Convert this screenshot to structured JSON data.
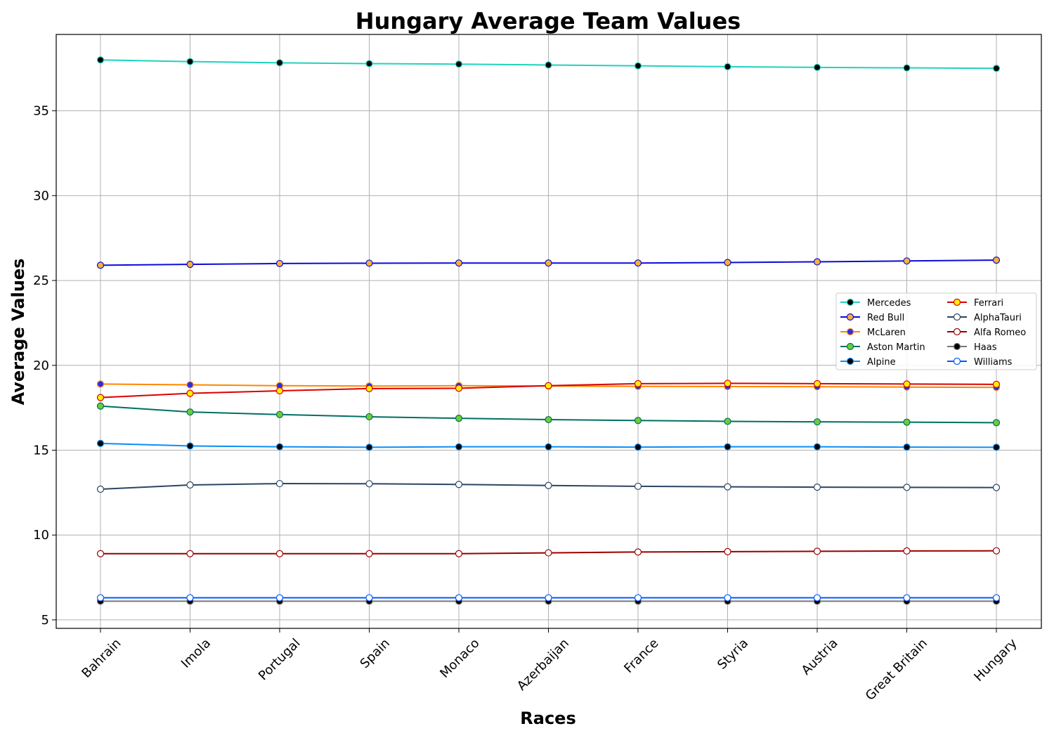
{
  "chart_data": {
    "type": "line",
    "title": "Hungary Average Team Values",
    "xlabel": "Races",
    "ylabel": "Average Values",
    "categories": [
      "Bahrain",
      "Imola",
      "Portugal",
      "Spain",
      "Monaco",
      "Azerbaijan",
      "France",
      "Styria",
      "Austria",
      "Great Britain",
      "Hungary"
    ],
    "ylim": [
      4.5,
      39.5
    ],
    "yticks": [
      5,
      10,
      15,
      20,
      25,
      30,
      35
    ],
    "grid": true,
    "legend_position": "right",
    "series": [
      {
        "name": "Mercedes",
        "line_color": "#20d2be",
        "marker_fill": "#000000",
        "marker_edge": "#20d2be",
        "values": [
          38.0,
          37.9,
          37.83,
          37.78,
          37.75,
          37.7,
          37.65,
          37.6,
          37.56,
          37.53,
          37.5
        ]
      },
      {
        "name": "Red Bull",
        "line_color": "#0b0bd8",
        "marker_fill": "#f7b236",
        "marker_edge": "#0b0bd8",
        "values": [
          25.9,
          25.95,
          26.0,
          26.02,
          26.03,
          26.03,
          26.03,
          26.06,
          26.1,
          26.15,
          26.2
        ]
      },
      {
        "name": "McLaren",
        "line_color": "#ff8700",
        "marker_fill": "#2c2cf0",
        "marker_edge": "#ff8700",
        "values": [
          18.9,
          18.85,
          18.8,
          18.78,
          18.8,
          18.78,
          18.76,
          18.75,
          18.74,
          18.72,
          18.7
        ]
      },
      {
        "name": "Aston Martin",
        "line_color": "#006f62",
        "marker_fill": "#6dcc3a",
        "marker_edge": "#006f62",
        "values": [
          17.6,
          17.25,
          17.1,
          16.97,
          16.88,
          16.8,
          16.75,
          16.7,
          16.67,
          16.65,
          16.62
        ]
      },
      {
        "name": "Alpine",
        "line_color": "#0a8ef5",
        "marker_fill": "#000000",
        "marker_edge": "#0a8ef5",
        "values": [
          15.4,
          15.25,
          15.2,
          15.17,
          15.2,
          15.2,
          15.18,
          15.2,
          15.2,
          15.18,
          15.17
        ]
      },
      {
        "name": "Ferrari",
        "line_color": "#dc0000",
        "marker_fill": "#fff200",
        "marker_edge": "#dc0000",
        "values": [
          18.1,
          18.35,
          18.5,
          18.63,
          18.65,
          18.8,
          18.92,
          18.94,
          18.92,
          18.9,
          18.88
        ]
      },
      {
        "name": "AlphaTauri",
        "line_color": "#2b4562",
        "marker_fill": "#ffffff",
        "marker_edge": "#2b4562",
        "values": [
          12.7,
          12.95,
          13.03,
          13.02,
          12.98,
          12.92,
          12.87,
          12.84,
          12.82,
          12.81,
          12.8
        ]
      },
      {
        "name": "Alfa Romeo",
        "line_color": "#990000",
        "marker_fill": "#ffffff",
        "marker_edge": "#990000",
        "values": [
          8.9,
          8.9,
          8.9,
          8.9,
          8.9,
          8.95,
          9.0,
          9.02,
          9.04,
          9.06,
          9.07
        ]
      },
      {
        "name": "Haas",
        "line_color": "#787878",
        "marker_fill": "#000000",
        "marker_edge": "#787878",
        "values": [
          6.1,
          6.1,
          6.1,
          6.1,
          6.1,
          6.1,
          6.1,
          6.1,
          6.1,
          6.1,
          6.1
        ]
      },
      {
        "name": "Williams",
        "line_color": "#005aff",
        "marker_fill": "#ffffff",
        "marker_edge": "#005aff",
        "values": [
          6.3,
          6.3,
          6.3,
          6.3,
          6.3,
          6.3,
          6.3,
          6.3,
          6.3,
          6.3,
          6.3
        ]
      }
    ]
  }
}
